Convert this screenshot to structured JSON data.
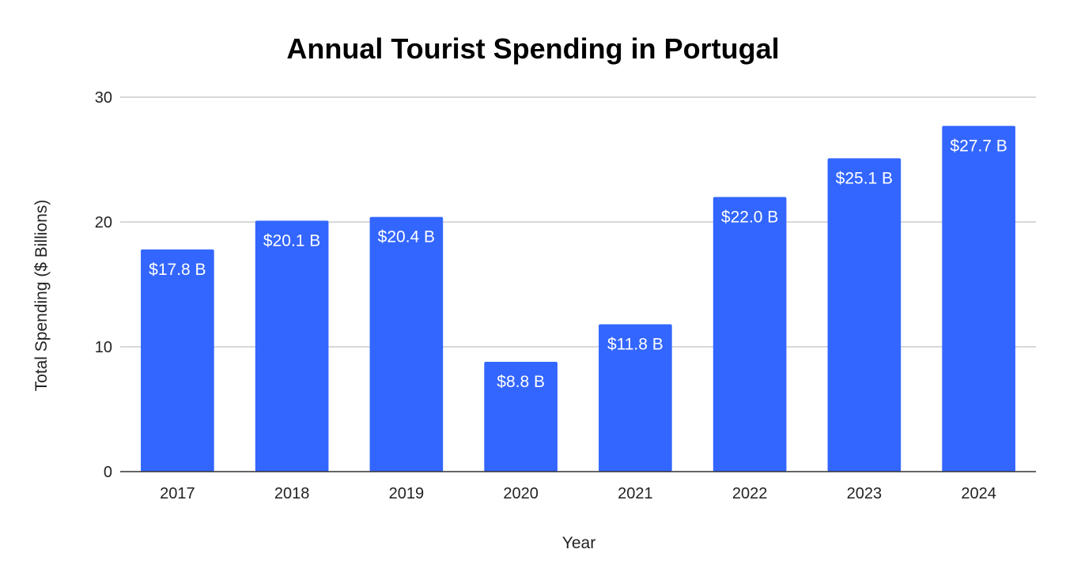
{
  "chart_data": {
    "type": "bar",
    "title": "Annual Tourist Spending in Portugal",
    "xlabel": "Year",
    "ylabel": "Total Spending ($ Billions)",
    "categories": [
      "2017",
      "2018",
      "2019",
      "2020",
      "2021",
      "2022",
      "2023",
      "2024"
    ],
    "values": [
      17.8,
      20.1,
      20.4,
      8.8,
      11.8,
      22.0,
      25.1,
      27.7
    ],
    "data_labels": [
      "$17.8 B",
      "$20.1 B",
      "$20.4 B",
      "$8.8 B",
      "$11.8 B",
      "$22.0 B",
      "$25.1 B",
      "$27.7 B"
    ],
    "ylim": [
      0,
      30
    ],
    "yticks": [
      "0",
      "10",
      "20",
      "30"
    ],
    "grid": true,
    "legend": "none",
    "bar_color": "#3366ff"
  }
}
